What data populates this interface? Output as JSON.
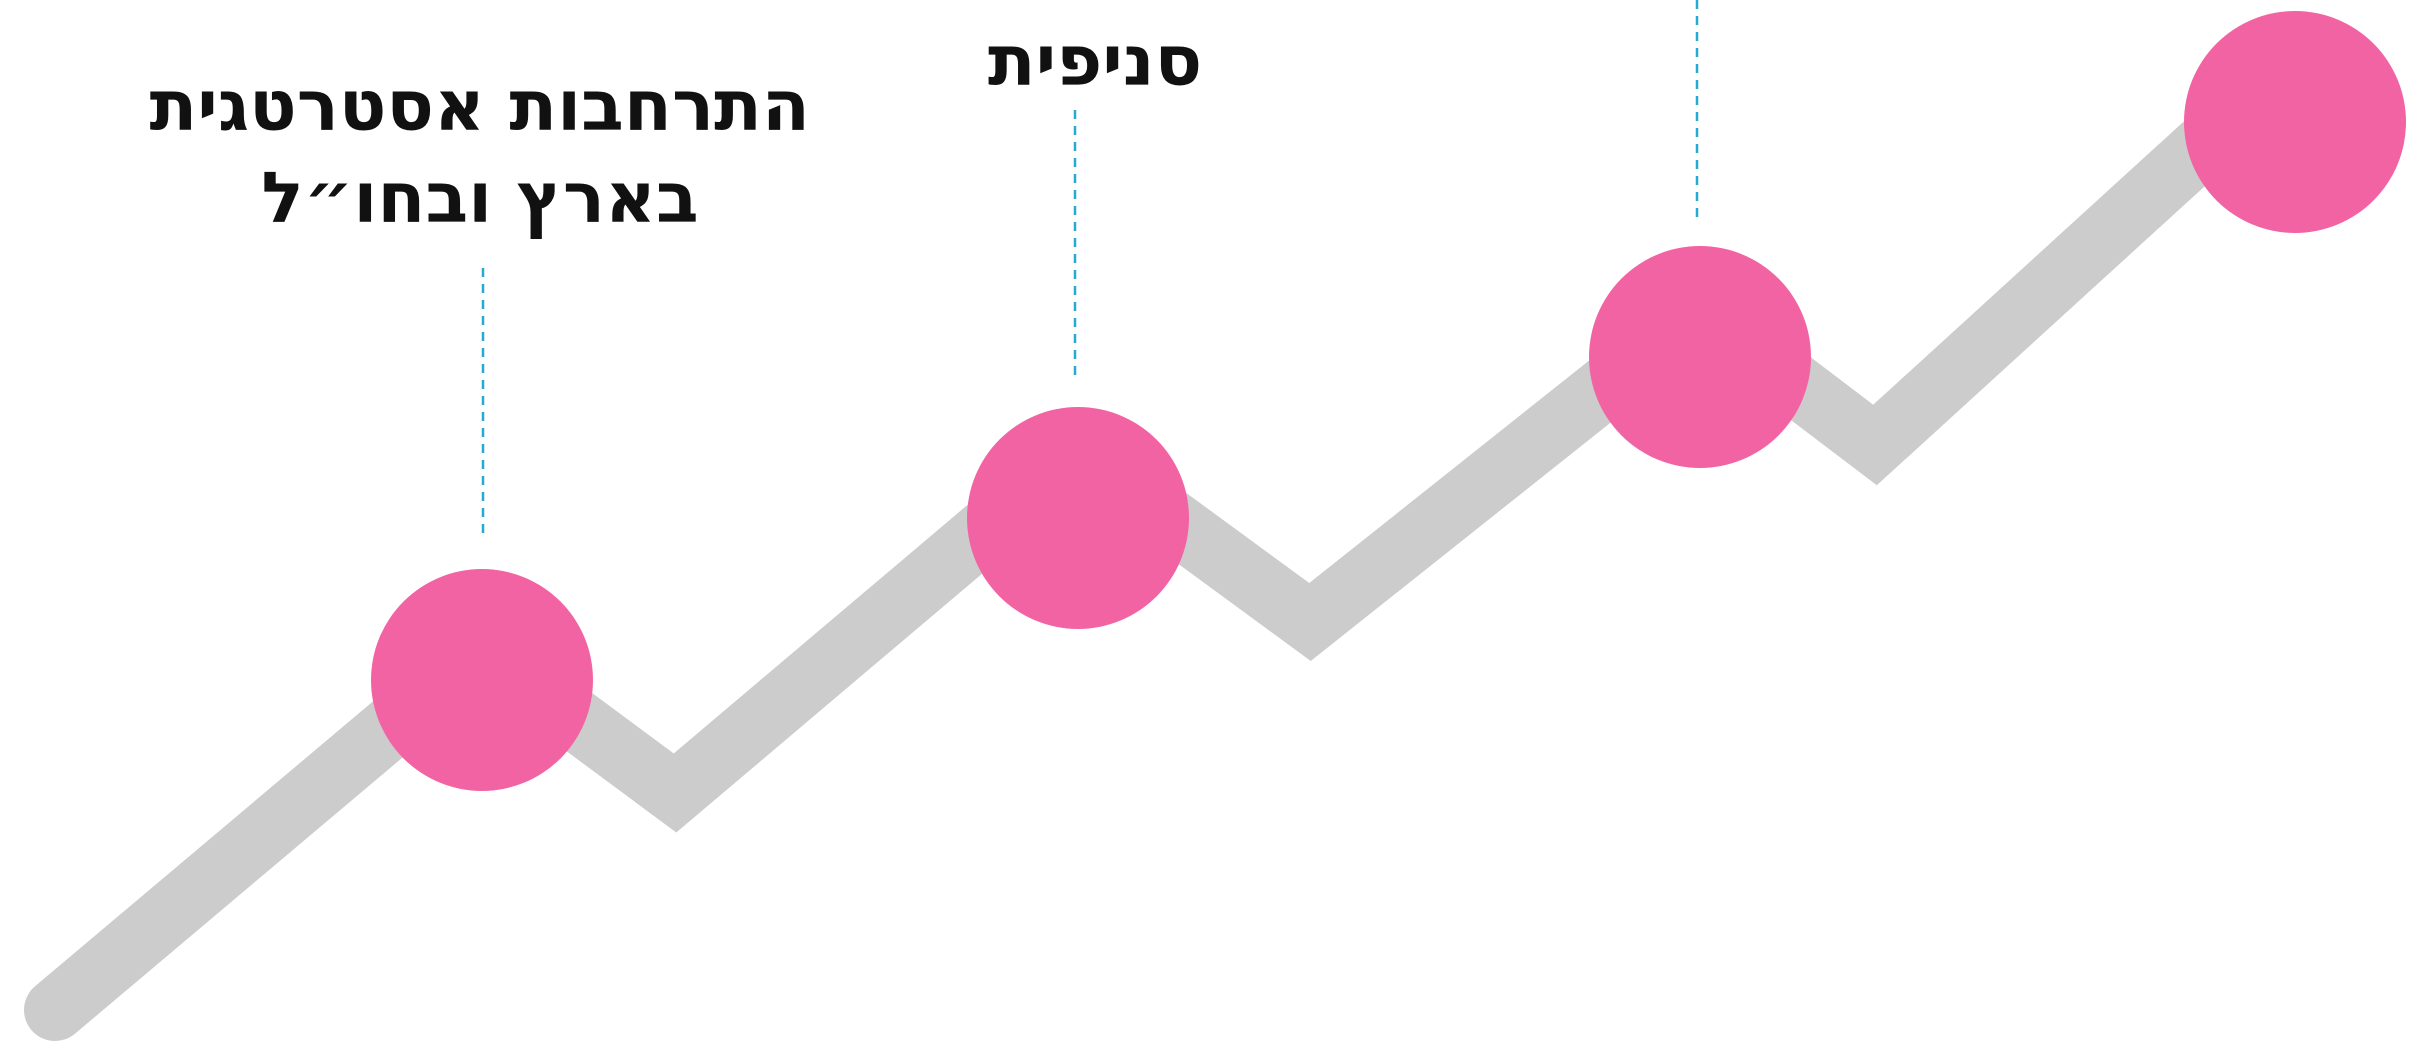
{
  "diagram": {
    "type": "zigzag-timeline",
    "colors": {
      "path": "#cccccc",
      "node": "#f263a3",
      "connector": "#29a8d1",
      "text": "#111111"
    },
    "labels": [
      {
        "lines": [
          "התרחבות אסטרטגית",
          "בארץ ובחו״ל"
        ]
      },
      {
        "lines": [
          "סניפית"
        ]
      }
    ]
  }
}
